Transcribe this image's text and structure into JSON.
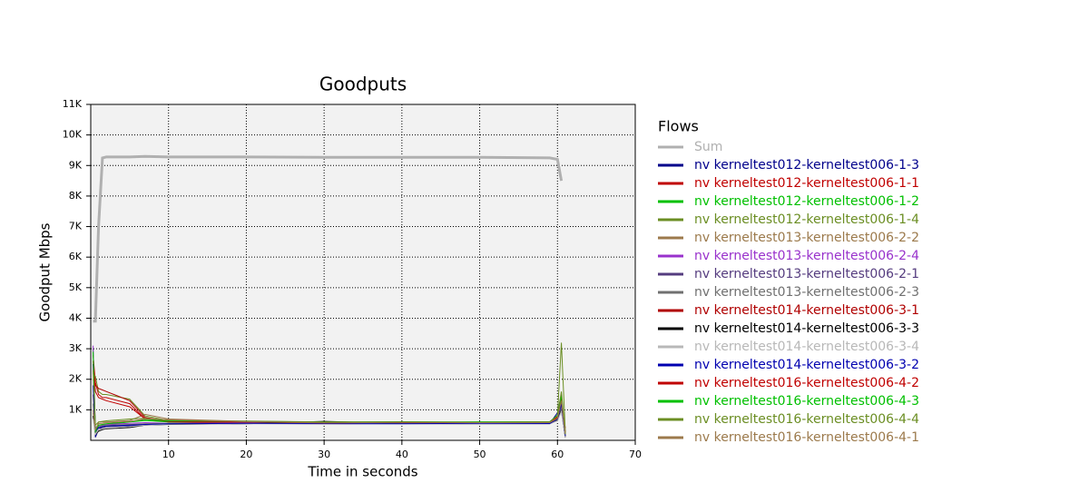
{
  "chart_data": {
    "type": "line",
    "title": "Goodputs",
    "x_label": "Time in seconds",
    "y_label": "Goodput Mbps",
    "legend_title": "Flows",
    "xlim": [
      0,
      70
    ],
    "xticks": [
      10,
      20,
      30,
      40,
      50,
      60,
      70
    ],
    "ylim": [
      0,
      11000
    ],
    "yticks": [
      {
        "value": 1000,
        "label": "1K"
      },
      {
        "value": 2000,
        "label": "2K"
      },
      {
        "value": 3000,
        "label": "3K"
      },
      {
        "value": 4000,
        "label": "4K"
      },
      {
        "value": 5000,
        "label": "5K"
      },
      {
        "value": 6000,
        "label": "6K"
      },
      {
        "value": 7000,
        "label": "7K"
      },
      {
        "value": 8000,
        "label": "8K"
      },
      {
        "value": 9000,
        "label": "9K"
      },
      {
        "value": 10000,
        "label": "10K"
      },
      {
        "value": 11000,
        "label": "11K"
      }
    ],
    "grid": true,
    "legend": "right",
    "x": [
      0.3,
      0.6,
      1,
      1.5,
      2,
      5,
      7,
      10,
      20,
      30,
      40,
      50,
      59,
      60,
      60.5,
      61
    ],
    "series": [
      {
        "name": "Sum",
        "color": "#b0b0b0",
        "values": [
          3900,
          3900,
          7000,
          9250,
          9280,
          9280,
          9300,
          9280,
          9280,
          9270,
          9270,
          9270,
          9250,
          9200,
          8500,
          null
        ]
      },
      {
        "name": "nv kerneltest012-kerneltest006-1-3",
        "color": "#00008b",
        "values": [
          2500,
          100,
          350,
          420,
          450,
          480,
          500,
          550,
          560,
          540,
          560,
          570,
          550,
          900,
          1500,
          100
        ]
      },
      {
        "name": "nv kerneltest012-kerneltest006-1-1",
        "color": "#c00000",
        "values": [
          2800,
          1900,
          1500,
          1400,
          1400,
          1200,
          700,
          600,
          580,
          560,
          570,
          560,
          580,
          700,
          1200,
          400
        ]
      },
      {
        "name": "nv kerneltest012-kerneltest006-1-2",
        "color": "#00c000",
        "values": [
          3000,
          200,
          500,
          500,
          520,
          600,
          650,
          600,
          620,
          580,
          590,
          600,
          600,
          800,
          1300,
          200
        ]
      },
      {
        "name": "nv kerneltest012-kerneltest006-1-4",
        "color": "#6b8e23",
        "values": [
          2200,
          2100,
          1600,
          1500,
          1500,
          1350,
          800,
          650,
          600,
          590,
          580,
          580,
          600,
          800,
          3200,
          300
        ]
      },
      {
        "name": "nv kerneltest013-kerneltest006-2-2",
        "color": "#9c7a4c",
        "values": [
          900,
          300,
          600,
          600,
          600,
          650,
          850,
          700,
          620,
          560,
          600,
          560,
          570,
          750,
          1400,
          200
        ]
      },
      {
        "name": "nv kerneltest013-kerneltest006-2-4",
        "color": "#9932cc",
        "values": [
          3100,
          400,
          500,
          500,
          520,
          560,
          580,
          560,
          570,
          550,
          560,
          560,
          560,
          700,
          1100,
          150
        ]
      },
      {
        "name": "nv kerneltest013-kerneltest006-2-1",
        "color": "#553c7f",
        "values": [
          1500,
          300,
          400,
          420,
          450,
          500,
          520,
          540,
          550,
          540,
          550,
          550,
          540,
          650,
          1000,
          100
        ]
      },
      {
        "name": "nv kerneltest013-kerneltest006-2-3",
        "color": "#707070",
        "values": [
          1200,
          250,
          450,
          480,
          500,
          520,
          540,
          560,
          560,
          550,
          560,
          550,
          560,
          680,
          1100,
          150
        ]
      },
      {
        "name": "nv kerneltest014-kerneltest006-3-1",
        "color": "#b00000",
        "values": [
          2000,
          1800,
          1700,
          1650,
          1600,
          1300,
          750,
          620,
          600,
          580,
          580,
          570,
          590,
          720,
          1250,
          250
        ]
      },
      {
        "name": "nv kerneltest014-kerneltest006-3-3",
        "color": "#000000",
        "values": [
          800,
          200,
          300,
          350,
          380,
          420,
          500,
          520,
          540,
          620,
          550,
          540,
          550,
          650,
          1000,
          100
        ]
      },
      {
        "name": "nv kerneltest014-kerneltest006-3-4",
        "color": "#b8b8b8",
        "values": [
          700,
          200,
          350,
          380,
          400,
          450,
          500,
          530,
          540,
          540,
          540,
          540,
          540,
          640,
          950,
          100
        ]
      },
      {
        "name": "nv kerneltest014-kerneltest006-3-2",
        "color": "#0000b0",
        "values": [
          1800,
          300,
          420,
          450,
          470,
          500,
          520,
          540,
          560,
          550,
          540,
          560,
          550,
          700,
          1200,
          150
        ]
      },
      {
        "name": "nv kerneltest016-kerneltest006-4-2",
        "color": "#c00000",
        "values": [
          2600,
          1600,
          1400,
          1350,
          1300,
          1100,
          700,
          620,
          600,
          570,
          590,
          580,
          590,
          760,
          1350,
          250
        ]
      },
      {
        "name": "nv kerneltest016-kerneltest006-4-3",
        "color": "#00c000",
        "values": [
          2900,
          300,
          500,
          520,
          540,
          620,
          680,
          640,
          620,
          600,
          610,
          600,
          610,
          820,
          1450,
          200
        ]
      },
      {
        "name": "nv kerneltest016-kerneltest006-4-4",
        "color": "#6b8e23",
        "values": [
          2300,
          500,
          600,
          620,
          640,
          700,
          720,
          660,
          630,
          600,
          600,
          590,
          610,
          800,
          1600,
          250
        ]
      },
      {
        "name": "nv kerneltest016-kerneltest006-4-1",
        "color": "#9c7a4c",
        "values": [
          1000,
          350,
          550,
          560,
          580,
          620,
          700,
          680,
          610,
          570,
          590,
          580,
          580,
          720,
          1300,
          200
        ]
      }
    ]
  }
}
